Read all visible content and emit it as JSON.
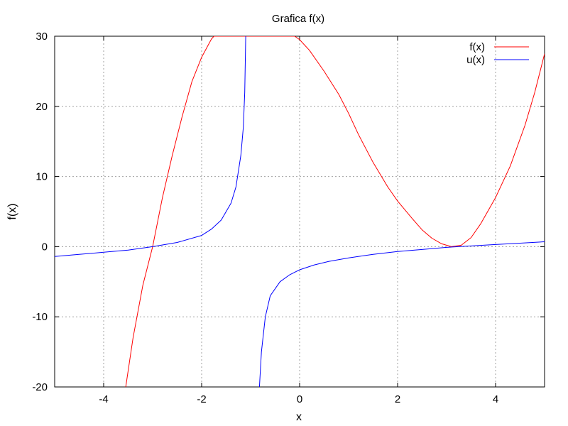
{
  "chart_data": {
    "type": "line",
    "title": "Grafica f(x)",
    "xlabel": "x",
    "ylabel": "f(x)",
    "xlim": [
      -5,
      5
    ],
    "ylim": [
      -20,
      30
    ],
    "grid": true,
    "legend_position": "top-right",
    "x_ticks": [
      -4,
      -2,
      0,
      2,
      4
    ],
    "y_ticks": [
      -20,
      -10,
      0,
      10,
      20,
      30
    ],
    "series": [
      {
        "name": "f(x)",
        "color": "#ff0000",
        "points": [
          [
            -3.55,
            -20
          ],
          [
            -3.4,
            -13
          ],
          [
            -3.2,
            -5.5
          ],
          [
            -3.0,
            0
          ],
          [
            -2.8,
            7
          ],
          [
            -2.6,
            13
          ],
          [
            -2.4,
            18.5
          ],
          [
            -2.2,
            23.5
          ],
          [
            -2.0,
            27
          ],
          [
            -1.8,
            29.6
          ],
          [
            -1.75,
            30
          ],
          [
            -0.1,
            30
          ],
          [
            0,
            29.5
          ],
          [
            0.2,
            28
          ],
          [
            0.5,
            25
          ],
          [
            0.8,
            21.7
          ],
          [
            1.0,
            19
          ],
          [
            1.2,
            16
          ],
          [
            1.5,
            12
          ],
          [
            1.8,
            8.5
          ],
          [
            2.0,
            6.5
          ],
          [
            2.3,
            4
          ],
          [
            2.5,
            2.4
          ],
          [
            2.7,
            1.2
          ],
          [
            2.9,
            0.4
          ],
          [
            3.1,
            0
          ],
          [
            3.3,
            0.2
          ],
          [
            3.5,
            1.3
          ],
          [
            3.7,
            3.3
          ],
          [
            4.0,
            7
          ],
          [
            4.3,
            11.5
          ],
          [
            4.6,
            17.3
          ],
          [
            4.8,
            22
          ],
          [
            5.0,
            27.5
          ]
        ]
      },
      {
        "name": "u(x)",
        "color": "#0000ff",
        "points": [
          [
            -5.0,
            -1.4
          ],
          [
            -4.5,
            -1.1
          ],
          [
            -4.0,
            -0.8
          ],
          [
            -3.5,
            -0.5
          ],
          [
            -3.0,
            0
          ],
          [
            -2.5,
            0.6
          ],
          [
            -2.0,
            1.6
          ],
          [
            -1.8,
            2.5
          ],
          [
            -1.6,
            3.8
          ],
          [
            -1.4,
            6.2
          ],
          [
            -1.3,
            8.5
          ],
          [
            -1.2,
            13
          ],
          [
            -1.15,
            17
          ],
          [
            -1.12,
            22
          ],
          [
            -1.1,
            30
          ],
          null,
          [
            -0.82,
            -20
          ],
          [
            -0.78,
            -15
          ],
          [
            -0.7,
            -10
          ],
          [
            -0.6,
            -7
          ],
          [
            -0.4,
            -5
          ],
          [
            -0.2,
            -4
          ],
          [
            0,
            -3.3
          ],
          [
            0.3,
            -2.6
          ],
          [
            0.6,
            -2.1
          ],
          [
            1.0,
            -1.6
          ],
          [
            1.5,
            -1.1
          ],
          [
            2.0,
            -0.7
          ],
          [
            2.5,
            -0.4
          ],
          [
            3.0,
            -0.1
          ],
          [
            3.5,
            0.1
          ],
          [
            4.0,
            0.3
          ],
          [
            4.5,
            0.5
          ],
          [
            5.0,
            0.7
          ]
        ]
      }
    ]
  }
}
